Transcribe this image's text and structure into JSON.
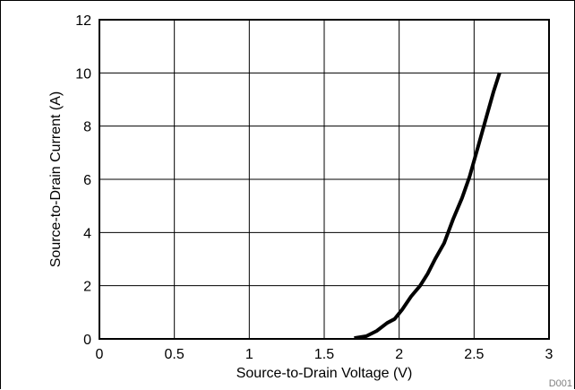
{
  "chart_data": {
    "type": "line",
    "title": "",
    "xlabel": "Source-to-Drain Voltage (V)",
    "ylabel": "Source-to-Drain Current (A)",
    "xlim": [
      0,
      3
    ],
    "ylim": [
      0,
      12
    ],
    "x_ticks": [
      0,
      0.5,
      1,
      1.5,
      2,
      2.5,
      3
    ],
    "y_ticks": [
      0,
      2,
      4,
      6,
      8,
      10,
      12
    ],
    "x_tick_labels": [
      "0",
      "0.5",
      "1",
      "1.5",
      "2",
      "2.5",
      "3"
    ],
    "y_tick_labels": [
      "0",
      "2",
      "4",
      "6",
      "8",
      "10",
      "12"
    ],
    "grid": true,
    "series": [
      {
        "color": "#000000",
        "x": [
          1.7,
          1.78,
          1.85,
          1.92,
          1.97,
          2.02,
          2.08,
          2.14,
          2.19,
          2.24,
          2.3,
          2.36,
          2.42,
          2.47,
          2.53,
          2.58,
          2.63,
          2.67
        ],
        "y": [
          0.03,
          0.1,
          0.3,
          0.6,
          0.75,
          1.1,
          1.6,
          2.0,
          2.45,
          3.0,
          3.6,
          4.5,
          5.3,
          6.1,
          7.3,
          8.3,
          9.3,
          10.0
        ]
      }
    ]
  },
  "figure_code": "D001"
}
